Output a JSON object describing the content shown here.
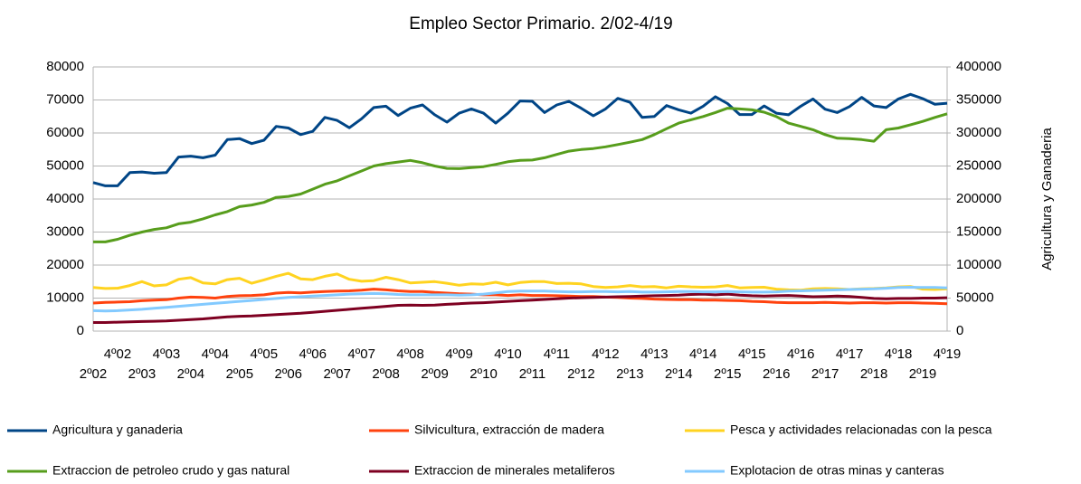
{
  "chart_data": {
    "type": "line",
    "title": "Empleo Sector Primario. 2/02-4/19",
    "y2label": "Agricultura y Ganaderia",
    "categories": [
      "2º02",
      null,
      "4º02",
      null,
      "2º03",
      null,
      "4º03",
      null,
      "2º04",
      null,
      "4º04",
      null,
      "2º05",
      null,
      "4º05",
      null,
      "2º06",
      null,
      "4º06",
      null,
      "2º07",
      null,
      "4º07",
      null,
      "2º08",
      null,
      "4º08",
      null,
      "2º09",
      null,
      "4º09",
      null,
      "2º10",
      null,
      "4º10",
      null,
      "2º11",
      null,
      "4º11",
      null,
      "2º12",
      null,
      "4º12",
      null,
      "2º13",
      null,
      "4º13",
      null,
      "2º14",
      null,
      "4º14",
      null,
      "2º15",
      null,
      "4º15",
      null,
      "2º16",
      null,
      "4º16",
      null,
      "2º17",
      null,
      "4º17",
      null,
      "2º18",
      null,
      "4º18",
      null,
      "2º19",
      null,
      "4º19"
    ],
    "ylim": [
      0,
      80000
    ],
    "yticks": [
      0,
      10000,
      20000,
      30000,
      40000,
      50000,
      60000,
      70000,
      80000
    ],
    "y2lim": [
      0,
      400000
    ],
    "y2ticks": [
      0,
      50000,
      100000,
      150000,
      200000,
      250000,
      300000,
      350000,
      400000
    ],
    "grid": true,
    "legend": "bottom",
    "series": [
      {
        "name": "Agricultura y ganaderia",
        "color": "#004586",
        "axis": "y2",
        "values": [
          225000,
          220000,
          220000,
          240000,
          241000,
          239000,
          240000,
          263500,
          265000,
          262500,
          266500,
          290000,
          291500,
          284000,
          289000,
          310000,
          307500,
          297500,
          302500,
          323500,
          319000,
          308000,
          321500,
          338500,
          340500,
          326500,
          337500,
          342500,
          327500,
          316500,
          330000,
          336500,
          330000,
          315000,
          330000,
          348500,
          348000,
          331000,
          342500,
          348000,
          337500,
          326000,
          336500,
          352500,
          346500,
          323500,
          325000,
          341500,
          335000,
          330000,
          340500,
          355000,
          344500,
          328000,
          328000,
          341000,
          330000,
          327500,
          340500,
          351500,
          336000,
          331000,
          340000,
          354000,
          341000,
          338500,
          351500,
          358500,
          352000,
          343500,
          345000
        ]
      },
      {
        "name": "Silvicultura, extracción de madera",
        "color": "#ff420e",
        "values": [
          8500,
          8700,
          8800,
          8900,
          9200,
          9400,
          9500,
          10000,
          10300,
          10200,
          10000,
          10500,
          10700,
          10800,
          11000,
          11500,
          11700,
          11600,
          11800,
          12000,
          12100,
          12200,
          12400,
          12700,
          12500,
          12200,
          12000,
          12000,
          11700,
          11500,
          11300,
          11200,
          11000,
          11000,
          10800,
          11000,
          10800,
          10800,
          10700,
          10600,
          10500,
          10500,
          10300,
          10200,
          10000,
          9900,
          9700,
          9600,
          9500,
          9500,
          9400,
          9400,
          9300,
          9200,
          9000,
          8900,
          8700,
          8600,
          8600,
          8600,
          8700,
          8600,
          8500,
          8600,
          8600,
          8500,
          8600,
          8600,
          8500,
          8400,
          8300
        ]
      },
      {
        "name": "Pesca y actividades relacionadas con la pesca",
        "color": "#ffd320",
        "values": [
          13200,
          12900,
          13000,
          13800,
          15000,
          13700,
          14000,
          15700,
          16200,
          14600,
          14300,
          15600,
          16000,
          14500,
          15500,
          16600,
          17500,
          15800,
          15600,
          16600,
          17300,
          15700,
          15100,
          15300,
          16300,
          15600,
          14600,
          14800,
          15000,
          14500,
          13900,
          14300,
          14200,
          14800,
          14000,
          14700,
          15000,
          15000,
          14400,
          14500,
          14300,
          13500,
          13200,
          13400,
          13800,
          13400,
          13500,
          13100,
          13600,
          13400,
          13300,
          13400,
          13800,
          13100,
          13200,
          13300,
          12700,
          12500,
          12400,
          12800,
          12900,
          12800,
          12600,
          12800,
          12900,
          13100,
          13400,
          13500,
          12700,
          12600,
          12800
        ]
      },
      {
        "name": "Extraccion de petroleo crudo y gas natural",
        "color": "#579d1c",
        "values": [
          27000,
          27000,
          27800,
          29000,
          30000,
          30800,
          31300,
          32500,
          33000,
          34000,
          35200,
          36200,
          37700,
          38200,
          39000,
          40500,
          40800,
          41500,
          43000,
          44500,
          45500,
          47000,
          48500,
          50000,
          50700,
          51200,
          51700,
          51000,
          50000,
          49300,
          49200,
          49500,
          49800,
          50500,
          51300,
          51700,
          51800,
          52500,
          53500,
          54500,
          55000,
          55300,
          55800,
          56500,
          57200,
          58000,
          59500,
          61300,
          63000,
          64000,
          65000,
          66200,
          67500,
          67300,
          67000,
          66300,
          65000,
          63000,
          62000,
          61000,
          59500,
          58400,
          58300,
          58000,
          57500,
          61000,
          61500,
          62500,
          63500,
          64700,
          65800
        ]
      },
      {
        "name": "Extraccion de minerales metaliferos",
        "color": "#7e0021",
        "values": [
          2600,
          2600,
          2700,
          2800,
          2900,
          3000,
          3100,
          3300,
          3500,
          3700,
          4000,
          4300,
          4500,
          4600,
          4800,
          5000,
          5200,
          5400,
          5700,
          6000,
          6300,
          6600,
          6900,
          7200,
          7500,
          7800,
          7900,
          7800,
          7900,
          8100,
          8300,
          8500,
          8600,
          8800,
          9000,
          9200,
          9400,
          9600,
          9800,
          10000,
          10100,
          10200,
          10300,
          10400,
          10500,
          10600,
          10700,
          10800,
          10900,
          11100,
          11200,
          11000,
          11200,
          10900,
          10700,
          10600,
          10700,
          10800,
          10600,
          10400,
          10500,
          10600,
          10500,
          10200,
          9900,
          9800,
          9900,
          9900,
          10000,
          10000,
          10100
        ]
      },
      {
        "name": "Explotacion de otras minas y canteras",
        "color": "#83caff",
        "values": [
          6200,
          6100,
          6200,
          6400,
          6600,
          6900,
          7200,
          7500,
          7800,
          8100,
          8400,
          8700,
          9000,
          9300,
          9600,
          9900,
          10200,
          10400,
          10600,
          10800,
          11000,
          11200,
          11300,
          11400,
          11300,
          11100,
          11000,
          11000,
          11000,
          11000,
          10900,
          11000,
          11200,
          11600,
          12000,
          12100,
          12100,
          12100,
          12000,
          11900,
          11900,
          12000,
          12000,
          11900,
          12000,
          11800,
          11800,
          11900,
          12000,
          12000,
          11900,
          11900,
          12000,
          11900,
          11800,
          11800,
          11900,
          12100,
          12200,
          12300,
          12400,
          12500,
          12600,
          12700,
          12800,
          13000,
          13200,
          13300,
          13200,
          13200,
          13100
        ]
      }
    ]
  }
}
